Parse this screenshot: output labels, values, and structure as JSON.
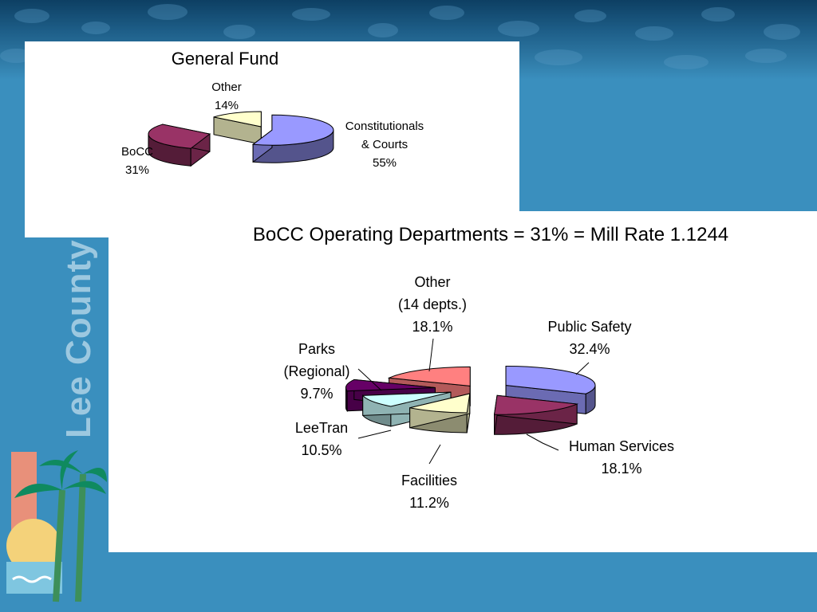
{
  "slide": {
    "brand_text": "Lee County",
    "colors": {
      "background": "#3a8fbe",
      "banner": "#1e5f89",
      "panel": "#ffffff"
    }
  },
  "chart_data": [
    {
      "type": "pie",
      "title": "General Fund",
      "style": "3d-exploded",
      "slices": [
        {
          "name": "Constitutionals & Courts",
          "label_lines": [
            "Constitutionals",
            "& Courts",
            "55%"
          ],
          "value": 55,
          "color": "#9999ff"
        },
        {
          "name": "BoCC",
          "label_lines": [
            "BoCC",
            "31%"
          ],
          "value": 31,
          "color": "#993366"
        },
        {
          "name": "Other",
          "label_lines": [
            "Other",
            "14%"
          ],
          "value": 14,
          "color": "#ffffcc"
        }
      ]
    },
    {
      "type": "pie",
      "title": "BoCC Operating Departments = 31% = Mill Rate 1.1244",
      "style": "3d-exploded",
      "slices": [
        {
          "name": "Public Safety",
          "label_lines": [
            "Public Safety",
            "32.4%"
          ],
          "value": 32.4,
          "color": "#9999ff"
        },
        {
          "name": "Human Services",
          "label_lines": [
            "Human Services",
            "18.1%"
          ],
          "value": 18.1,
          "color": "#993366"
        },
        {
          "name": "Facilities",
          "label_lines": [
            "Facilities",
            "11.2%"
          ],
          "value": 11.2,
          "color": "#ffffcc"
        },
        {
          "name": "LeeTran",
          "label_lines": [
            "LeeTran",
            "10.5%"
          ],
          "value": 10.5,
          "color": "#ccffff"
        },
        {
          "name": "Parks (Regional)",
          "label_lines": [
            "Parks",
            "(Regional)",
            "9.7%"
          ],
          "value": 9.7,
          "color": "#660066"
        },
        {
          "name": "Other (14 depts.)",
          "label_lines": [
            "Other",
            "(14 depts.)",
            "18.1%"
          ],
          "value": 18.1,
          "color": "#ff8080"
        }
      ]
    }
  ]
}
